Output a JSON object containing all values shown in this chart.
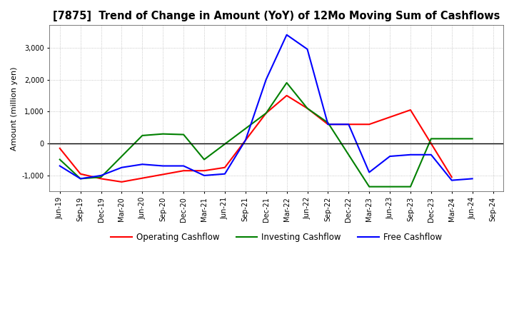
{
  "title": "[7875]  Trend of Change in Amount (YoY) of 12Mo Moving Sum of Cashflows",
  "ylabel": "Amount (million yen)",
  "x_labels": [
    "Jun-19",
    "Sep-19",
    "Dec-19",
    "Mar-20",
    "Jun-20",
    "Sep-20",
    "Dec-20",
    "Mar-21",
    "Jun-21",
    "Sep-21",
    "Dec-21",
    "Mar-22",
    "Jun-22",
    "Sep-22",
    "Dec-22",
    "Mar-23",
    "Jun-23",
    "Sep-23",
    "Dec-23",
    "Mar-24",
    "Jun-24",
    "Sep-24"
  ],
  "operating": [
    -150,
    -950,
    -1100,
    -1200,
    null,
    null,
    -850,
    -850,
    -750,
    null,
    950,
    1500,
    1100,
    600,
    600,
    600,
    null,
    1050,
    null,
    -1050,
    null,
    null
  ],
  "investing": [
    -500,
    -1100,
    -1050,
    null,
    250,
    300,
    280,
    -500,
    null,
    null,
    950,
    1900,
    1100,
    650,
    null,
    -1350,
    -1350,
    -1350,
    150,
    null,
    150,
    null
  ],
  "free": [
    -700,
    -1100,
    -1000,
    -750,
    -650,
    -700,
    -700,
    -1000,
    -950,
    100,
    2000,
    3400,
    2950,
    600,
    600,
    -900,
    -400,
    -350,
    -350,
    -1150,
    -1100,
    null
  ],
  "operating_color": "#ff0000",
  "investing_color": "#008000",
  "free_color": "#0000ff",
  "ylim": [
    -1500,
    3700
  ],
  "yticks": [
    -1000,
    0,
    1000,
    2000,
    3000
  ],
  "background": "#ffffff",
  "grid_color": "#888888"
}
